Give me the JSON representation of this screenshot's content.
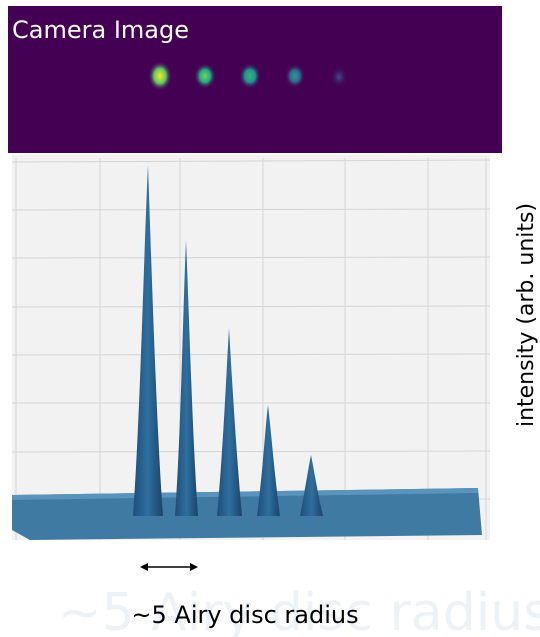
{
  "camera_panel": {
    "title": "Camera Image"
  },
  "surface_plot": {
    "z_label": "intensity (arb. units)"
  },
  "scale_bar": {
    "caption": "~5 Airy disc radius"
  }
}
